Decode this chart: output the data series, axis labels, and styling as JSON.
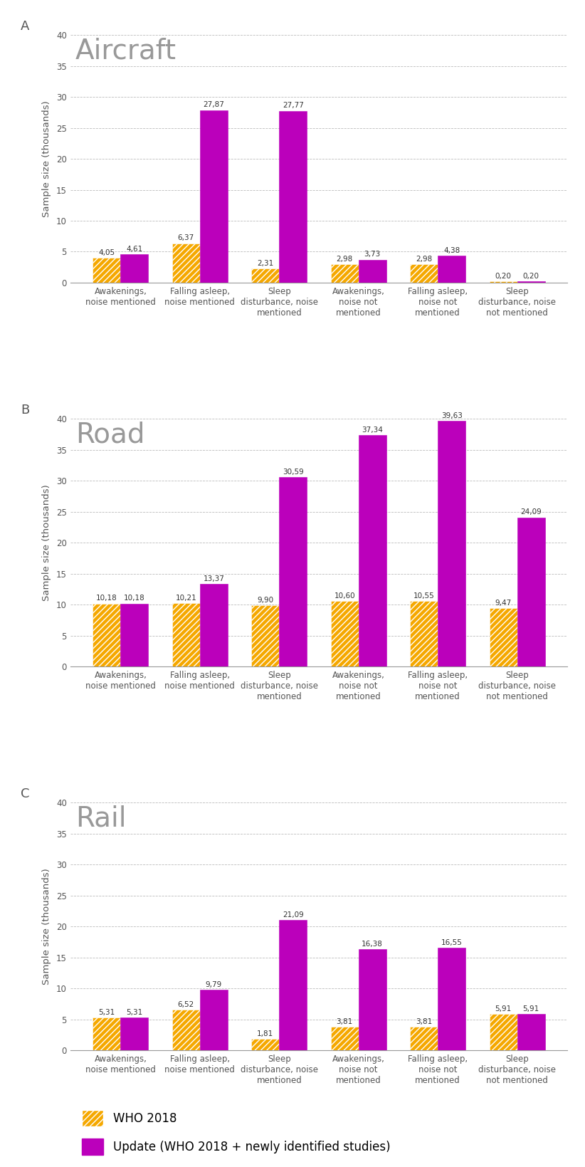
{
  "charts": [
    {
      "panel_label": "A",
      "title": "Aircraft",
      "who2018": [
        4.05,
        6.37,
        2.31,
        2.98,
        2.98,
        0.2
      ],
      "update": [
        4.61,
        27.87,
        27.77,
        3.73,
        4.38,
        0.2
      ]
    },
    {
      "panel_label": "B",
      "title": "Road",
      "who2018": [
        10.18,
        10.21,
        9.9,
        10.6,
        10.55,
        9.47
      ],
      "update": [
        10.18,
        13.37,
        30.59,
        37.34,
        39.63,
        24.09
      ]
    },
    {
      "panel_label": "C",
      "title": "Rail",
      "who2018": [
        5.31,
        6.52,
        1.81,
        3.81,
        3.81,
        5.91
      ],
      "update": [
        5.31,
        9.79,
        21.09,
        16.38,
        16.55,
        5.91
      ]
    }
  ],
  "categories": [
    "Awakenings,\nnoise mentioned",
    "Falling asleep,\nnoise mentioned",
    "Sleep\ndisturbance, noise\nmentioned",
    "Awakenings,\nnoise not\nmentioned",
    "Falling asleep,\nnoise not\nmentioned",
    "Sleep\ndisturbance, noise\nnot mentioned"
  ],
  "ylim": [
    0,
    40
  ],
  "yticks": [
    0,
    5,
    10,
    15,
    20,
    25,
    30,
    35,
    40
  ],
  "ylabel": "Sample size (thousands)",
  "color_who": "#F5A800",
  "color_update": "#BB00BB",
  "hatch_who": "////",
  "legend_who": "WHO 2018",
  "legend_update": "Update (WHO 2018 + newly identified studies)",
  "bar_width": 0.35,
  "value_fontsize": 7.5,
  "title_fontsize": 28,
  "panel_label_fontsize": 13,
  "axis_fontsize": 8.5,
  "ylabel_fontsize": 9.5,
  "background_color": "#ffffff",
  "grid_color": "#bbbbbb",
  "axis_color": "#999999",
  "title_color": "#999999",
  "label_color": "#555555"
}
